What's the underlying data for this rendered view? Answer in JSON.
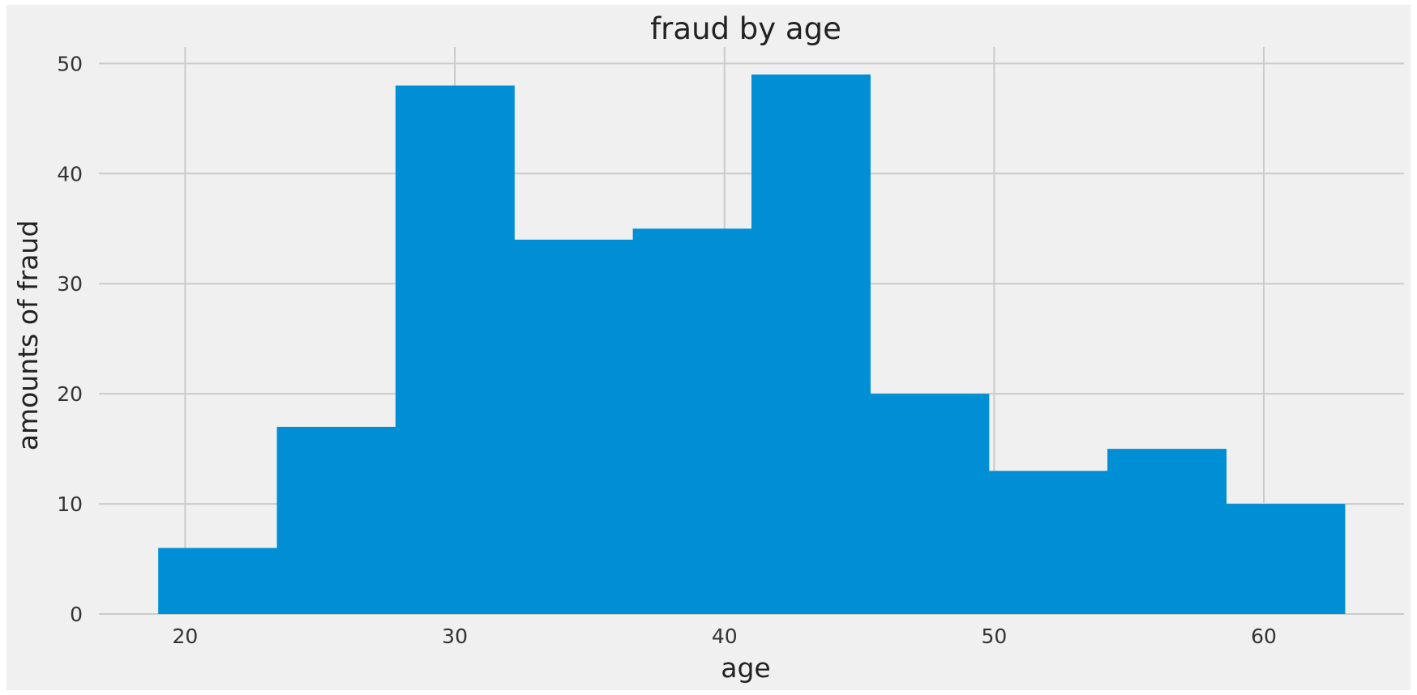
{
  "chart_data": {
    "type": "bar",
    "title": "fraud by age",
    "xlabel": "age",
    "ylabel": "amounts of fraud",
    "xlim": [
      16.8,
      65.2
    ],
    "ylim": [
      0,
      51.5
    ],
    "xticks": [
      20,
      30,
      40,
      50,
      60
    ],
    "yticks": [
      0,
      10,
      20,
      30,
      40,
      50
    ],
    "grid": true,
    "bar_color": "#008fd5",
    "background_color": "#f0f0f0",
    "grid_color": "#cbcbcb",
    "bins": [
      {
        "x0": 19.0,
        "x1": 23.4,
        "value": 6
      },
      {
        "x0": 23.4,
        "x1": 27.8,
        "value": 17
      },
      {
        "x0": 27.8,
        "x1": 32.2,
        "value": 48
      },
      {
        "x0": 32.2,
        "x1": 36.6,
        "value": 34
      },
      {
        "x0": 36.6,
        "x1": 41.0,
        "value": 35
      },
      {
        "x0": 41.0,
        "x1": 45.4,
        "value": 49
      },
      {
        "x0": 45.4,
        "x1": 49.8,
        "value": 20
      },
      {
        "x0": 49.8,
        "x1": 54.2,
        "value": 13
      },
      {
        "x0": 54.2,
        "x1": 58.6,
        "value": 15
      },
      {
        "x0": 58.6,
        "x1": 63.0,
        "value": 10
      }
    ]
  }
}
